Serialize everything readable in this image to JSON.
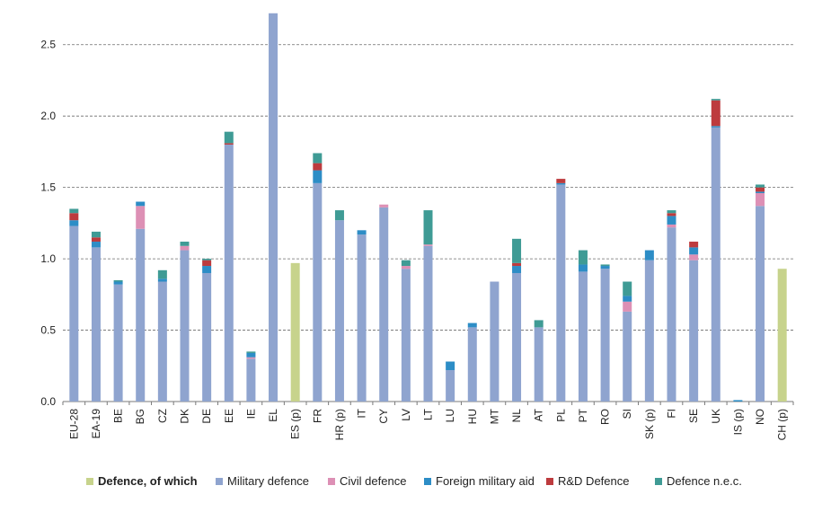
{
  "chart_data": {
    "type": "bar",
    "stacked": true,
    "title": "",
    "xlabel": "",
    "ylabel": "",
    "ylim": [
      0,
      2.75
    ],
    "yticks": [
      "0.0",
      "0.5",
      "1.0",
      "1.5",
      "2.0",
      "2.5"
    ],
    "grid": "horizontal dashed",
    "legend_position": "bottom",
    "categories": [
      "EU-28",
      "EA-19",
      "BE",
      "BG",
      "CZ",
      "DK",
      "DE",
      "EE",
      "IE",
      "EL",
      "ES (p)",
      "FR",
      "HR (p)",
      "IT",
      "CY",
      "LV",
      "LT",
      "LU",
      "HU",
      "MT",
      "NL",
      "AT",
      "PL",
      "PT",
      "RO",
      "SI",
      "SK (p)",
      "FI",
      "SE",
      "UK",
      "IS (p)",
      "NO",
      "CH (p)"
    ],
    "series": [
      {
        "name": "Defence, of which",
        "color": "#c7d38c",
        "values": [
          0,
          0,
          0,
          0,
          0,
          0,
          0,
          0,
          0,
          0,
          0.97,
          0,
          0,
          0,
          0,
          0,
          0,
          0,
          0,
          0,
          0,
          0,
          0,
          0,
          0,
          0,
          0,
          0,
          0,
          0,
          0,
          0,
          0.93
        ]
      },
      {
        "name": "Military defence",
        "color": "#8fa4cf",
        "values": [
          1.23,
          1.08,
          0.82,
          1.21,
          0.84,
          1.06,
          0.9,
          1.8,
          0.3,
          2.72,
          0,
          1.53,
          1.27,
          1.17,
          1.36,
          0.93,
          1.09,
          0.22,
          0.52,
          0.84,
          0.9,
          0.52,
          1.52,
          0.91,
          0.93,
          0.63,
          0.99,
          1.22,
          0.99,
          1.92,
          0,
          1.37,
          0
        ]
      },
      {
        "name": "Civil defence",
        "color": "#dd90b5",
        "values": [
          0,
          0,
          0,
          0.16,
          0,
          0.03,
          0,
          0,
          0.01,
          0,
          0,
          0,
          0,
          0,
          0.02,
          0.02,
          0.01,
          0,
          0,
          0,
          0,
          0,
          0,
          0,
          0,
          0.07,
          0,
          0.02,
          0.04,
          0,
          0,
          0.09,
          0
        ]
      },
      {
        "name": "Foreign military aid",
        "color": "#2d8dc6",
        "values": [
          0.04,
          0.04,
          0.02,
          0.03,
          0.02,
          0,
          0.05,
          0,
          0.03,
          0,
          0,
          0.09,
          0,
          0.03,
          0,
          0,
          0,
          0.06,
          0.03,
          0,
          0.05,
          0,
          0.01,
          0.05,
          0.02,
          0.04,
          0.07,
          0.06,
          0.05,
          0.01,
          0.01,
          0.01,
          0
        ]
      },
      {
        "name": "R&D Defence",
        "color": "#bd3b3e",
        "values": [
          0.05,
          0.03,
          0,
          0,
          0,
          0,
          0.04,
          0.01,
          0,
          0,
          0,
          0.05,
          0,
          0,
          0,
          0,
          0,
          0,
          0,
          0,
          0.02,
          0,
          0.03,
          0,
          0,
          0,
          0,
          0.02,
          0.04,
          0.18,
          0,
          0.03,
          0
        ]
      },
      {
        "name": "Defence n.e.c.",
        "color": "#3f9b95",
        "values": [
          0.03,
          0.04,
          0.01,
          0,
          0.06,
          0.03,
          0.01,
          0.08,
          0.01,
          0,
          0,
          0.07,
          0.07,
          0,
          0,
          0.04,
          0.24,
          0,
          0,
          0,
          0.17,
          0.05,
          0,
          0.1,
          0.01,
          0.1,
          0,
          0.02,
          0,
          0.01,
          0,
          0.02,
          0
        ]
      }
    ]
  }
}
